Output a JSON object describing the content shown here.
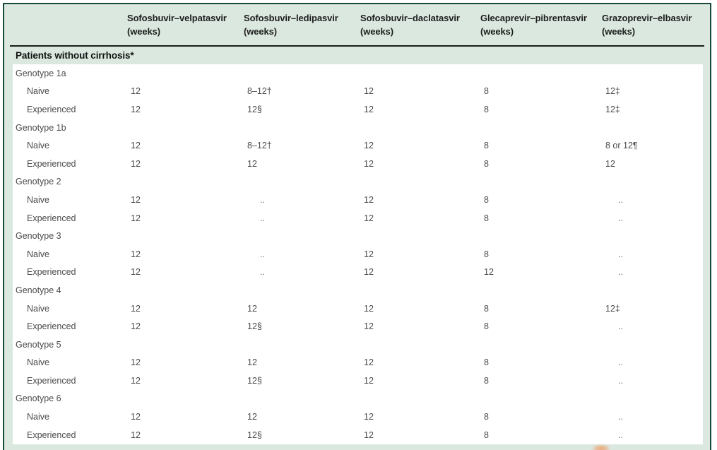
{
  "colors": {
    "frame_background": "#dbe8e0",
    "frame_border": "#17493e",
    "header_rule": "#1c1c1c",
    "body_background": "#ffffff",
    "header_text": "#1d1d1d",
    "body_text": "#4b4b4b",
    "artifact_orange": "#eda573"
  },
  "table": {
    "section_header": "Patients without cirrhosis*",
    "no_data_marker": "..",
    "column_headers": [
      {
        "name": "Sofosbuvir–velpatasvir",
        "unit": "(weeks)"
      },
      {
        "name": "Sofosbuvir–ledipasvir",
        "unit": "(weeks)"
      },
      {
        "name": "Sofosbuvir–daclatasvir",
        "unit": "(weeks)"
      },
      {
        "name": "Glecaprevir–pibrentasvir",
        "unit": "(weeks)"
      },
      {
        "name": "Grazoprevir–elbasvir",
        "unit": "(weeks)"
      }
    ],
    "rows": [
      {
        "type": "group",
        "label": "Genotype 1a"
      },
      {
        "type": "data",
        "label": "Naive",
        "values": [
          "12",
          "8–12†",
          "12",
          "8",
          "12‡"
        ]
      },
      {
        "type": "data",
        "label": "Experienced",
        "values": [
          "12",
          "12§",
          "12",
          "8",
          "12‡"
        ]
      },
      {
        "type": "group",
        "label": "Genotype 1b"
      },
      {
        "type": "data",
        "label": "Naive",
        "values": [
          "12",
          "8–12†",
          "12",
          "8",
          "8 or 12¶"
        ]
      },
      {
        "type": "data",
        "label": "Experienced",
        "values": [
          "12",
          "12",
          "12",
          "8",
          "12"
        ]
      },
      {
        "type": "group",
        "label": "Genotype 2"
      },
      {
        "type": "data",
        "label": "Naive",
        "values": [
          "12",
          "..",
          "12",
          "8",
          ".."
        ]
      },
      {
        "type": "data",
        "label": "Experienced",
        "values": [
          "12",
          "..",
          "12",
          "8",
          ".."
        ]
      },
      {
        "type": "group",
        "label": "Genotype 3"
      },
      {
        "type": "data",
        "label": "Naive",
        "values": [
          "12",
          "..",
          "12",
          "8",
          ".."
        ]
      },
      {
        "type": "data",
        "label": "Experienced",
        "values": [
          "12",
          "..",
          "12",
          "12",
          ".."
        ]
      },
      {
        "type": "group",
        "label": "Genotype 4"
      },
      {
        "type": "data",
        "label": "Naive",
        "values": [
          "12",
          "12",
          "12",
          "8",
          "12‡"
        ]
      },
      {
        "type": "data",
        "label": "Experienced",
        "values": [
          "12",
          "12§",
          "12",
          "8",
          ".."
        ]
      },
      {
        "type": "group",
        "label": "Genotype 5"
      },
      {
        "type": "data",
        "label": "Naive",
        "values": [
          "12",
          "12",
          "12",
          "8",
          ".."
        ]
      },
      {
        "type": "data",
        "label": "Experienced",
        "values": [
          "12",
          "12§",
          "12",
          "8",
          ".."
        ]
      },
      {
        "type": "group",
        "label": "Genotype 6"
      },
      {
        "type": "data",
        "label": "Naive",
        "values": [
          "12",
          "12",
          "12",
          "8",
          ".."
        ]
      },
      {
        "type": "data",
        "label": "Experienced",
        "values": [
          "12",
          "12§",
          "12",
          "8",
          ".."
        ]
      }
    ]
  }
}
